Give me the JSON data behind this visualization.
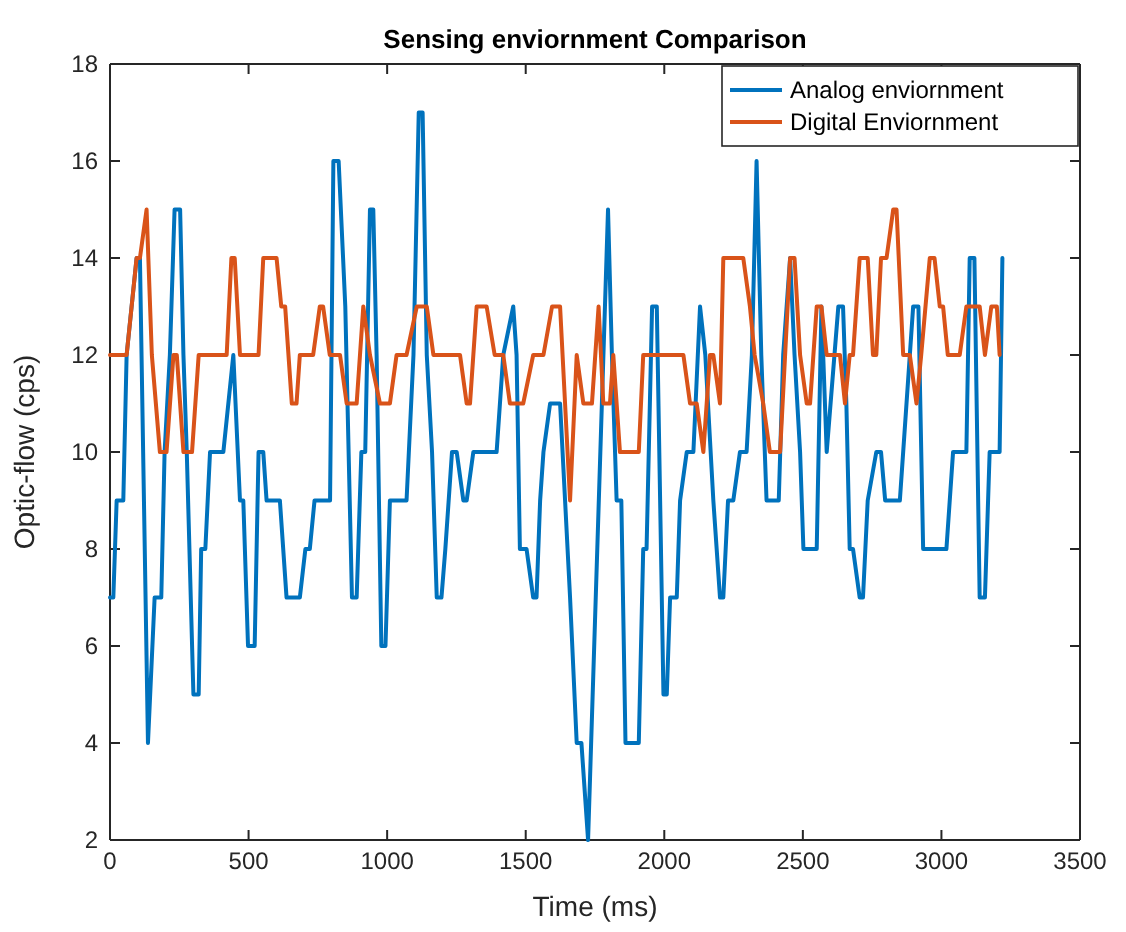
{
  "chart_data": {
    "type": "line",
    "title": "Sensing enviornment Comparison",
    "xlabel": "Time (ms)",
    "ylabel": "Optic-flow (cps)",
    "xlim": [
      0,
      3500
    ],
    "xticks": [
      0,
      500,
      1000,
      1500,
      2000,
      2500,
      3000,
      3500
    ],
    "ylim": [
      2,
      18
    ],
    "yticks": [
      2,
      4,
      6,
      8,
      10,
      12,
      14,
      16,
      18
    ],
    "grid": false,
    "legend": "top right",
    "line_style": "solid",
    "marker": "none",
    "series": [
      {
        "name": "Analog enviornment",
        "color": "#0072bd",
        "x": [
          0,
          12,
          24,
          48,
          60,
          96,
          108,
          137,
          161,
          185,
          197,
          216,
          233,
          253,
          265,
          277,
          301,
          320,
          329,
          344,
          361,
          409,
          445,
          469,
          481,
          498,
          522,
          536,
          553,
          565,
          613,
          637,
          685,
          705,
          721,
          738,
          794,
          806,
          825,
          849,
          873,
          890,
          907,
          921,
          938,
          950,
          962,
          979,
          994,
          1010,
          1070,
          1095,
          1114,
          1128,
          1143,
          1162,
          1179,
          1196,
          1210,
          1234,
          1251,
          1275,
          1287,
          1311,
          1395,
          1419,
          1455,
          1467,
          1479,
          1503,
          1527,
          1539,
          1552,
          1564,
          1588,
          1624,
          1660,
          1684,
          1701,
          1725,
          1797,
          1811,
          1828,
          1845,
          1860,
          1908,
          1924,
          1936,
          1956,
          1973,
          1997,
          2009,
          2021,
          2045,
          2057,
          2081,
          2105,
          2129,
          2148,
          2177,
          2201,
          2213,
          2230,
          2249,
          2273,
          2297,
          2316,
          2333,
          2350,
          2369,
          2413,
          2429,
          2454,
          2470,
          2490,
          2502,
          2550,
          2567,
          2586,
          2628,
          2645,
          2657,
          2669,
          2681,
          2705,
          2717,
          2734,
          2765,
          2782,
          2797,
          2850,
          2898,
          2917,
          2934,
          3018,
          3042,
          3090,
          3102,
          3119,
          3138,
          3157,
          3174,
          3210,
          3220
        ],
        "values": [
          7,
          7,
          9,
          9,
          12,
          14,
          14,
          4,
          7,
          7,
          10,
          12,
          15,
          15,
          12,
          10,
          5,
          5,
          8,
          8,
          10,
          10,
          12,
          9,
          9,
          6,
          6,
          10,
          10,
          9,
          9,
          7,
          7,
          8,
          8,
          9,
          9,
          16,
          16,
          13,
          7,
          7,
          10,
          10,
          15,
          15,
          12,
          6,
          6,
          9,
          9,
          12,
          17,
          17,
          12,
          10,
          7,
          7,
          8,
          10,
          10,
          9,
          9,
          10,
          10,
          12,
          13,
          12,
          8,
          8,
          7,
          7,
          9,
          10,
          11,
          11,
          7,
          4,
          4,
          2,
          15,
          12,
          9,
          9,
          4,
          4,
          8,
          8,
          13,
          13,
          5,
          5,
          7,
          7,
          9,
          10,
          10,
          13,
          12,
          9,
          7,
          7,
          9,
          9,
          10,
          10,
          12,
          16,
          12,
          9,
          9,
          12,
          14,
          12,
          10,
          8,
          8,
          13,
          10,
          13,
          13,
          11,
          8,
          8,
          7,
          7,
          9,
          10,
          10,
          9,
          9,
          13,
          13,
          8,
          8,
          10,
          10,
          14,
          14,
          7,
          7,
          10,
          10,
          14
        ]
      },
      {
        "name": "Digital Enviornment",
        "color": "#d95319",
        "x": [
          0,
          60,
          96,
          108,
          132,
          151,
          180,
          204,
          229,
          241,
          265,
          296,
          320,
          421,
          438,
          450,
          469,
          536,
          553,
          601,
          618,
          632,
          656,
          673,
          685,
          733,
          757,
          769,
          793,
          830,
          854,
          890,
          914,
          938,
          974,
          1010,
          1034,
          1070,
          1107,
          1143,
          1167,
          1263,
          1287,
          1299,
          1323,
          1359,
          1388,
          1419,
          1443,
          1491,
          1527,
          1564,
          1595,
          1624,
          1660,
          1684,
          1708,
          1739,
          1763,
          1780,
          1804,
          1816,
          1840,
          1908,
          1924,
          2069,
          2093,
          2117,
          2141,
          2165,
          2177,
          2201,
          2213,
          2285,
          2309,
          2326,
          2357,
          2381,
          2418,
          2454,
          2470,
          2490,
          2514,
          2526,
          2550,
          2567,
          2586,
          2634,
          2652,
          2669,
          2681,
          2705,
          2734,
          2753,
          2765,
          2782,
          2802,
          2826,
          2838,
          2862,
          2886,
          2910,
          2927,
          2958,
          2975,
          2994,
          3006,
          3023,
          3066,
          3090,
          3138,
          3157,
          3180,
          3200,
          3210
        ],
        "values": [
          12,
          12,
          14,
          14,
          15,
          12,
          10,
          10,
          12,
          12,
          10,
          10,
          12,
          12,
          14,
          14,
          12,
          12,
          14,
          14,
          13,
          13,
          11,
          11,
          12,
          12,
          13,
          13,
          12,
          12,
          11,
          11,
          13,
          12,
          11,
          11,
          12,
          12,
          13,
          13,
          12,
          12,
          11,
          11,
          13,
          13,
          12,
          12,
          11,
          11,
          12,
          12,
          13,
          13,
          9,
          12,
          11,
          11,
          13,
          11,
          11,
          12,
          10,
          10,
          12,
          12,
          11,
          11,
          10,
          12,
          12,
          11,
          14,
          14,
          13,
          12,
          11,
          10,
          10,
          14,
          14,
          12,
          11,
          11,
          13,
          13,
          12,
          12,
          11,
          12,
          12,
          14,
          14,
          12,
          12,
          14,
          14,
          15,
          15,
          12,
          12,
          11,
          12,
          14,
          14,
          13,
          13,
          12,
          12,
          13,
          13,
          12,
          13,
          13,
          12
        ]
      }
    ]
  }
}
